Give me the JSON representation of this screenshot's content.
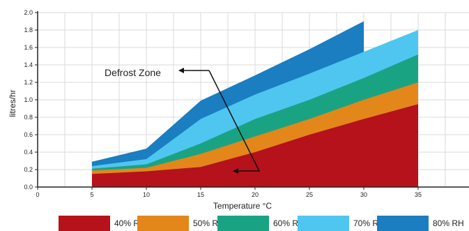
{
  "chart_data": {
    "type": "area",
    "xlabel": "Temperature °C",
    "ylabel": "litres/hr",
    "xlim": [
      0,
      40
    ],
    "ylim": [
      0,
      2.0
    ],
    "xticks": [
      "0",
      "5",
      "10",
      "15",
      "20",
      "25",
      "30",
      "35"
    ],
    "yticks": [
      "0.0",
      "0.2",
      "0.4",
      "0.6",
      "0.8",
      "1.0",
      "1.2",
      "1.4",
      "1.6",
      "1.8",
      "2.0"
    ],
    "grid": true,
    "legend_position": "bottom",
    "series": [
      {
        "name": "40% RH",
        "color": "#b5121b",
        "points": [
          [
            5,
            0.15
          ],
          [
            10,
            0.18
          ],
          [
            15,
            0.23
          ],
          [
            20,
            0.4
          ],
          [
            25,
            0.6
          ],
          [
            30,
            0.78
          ],
          [
            35,
            0.95
          ]
        ]
      },
      {
        "name": "50% RH",
        "color": "#e3871a",
        "points": [
          [
            5,
            0.19
          ],
          [
            10,
            0.22
          ],
          [
            15,
            0.38
          ],
          [
            20,
            0.58
          ],
          [
            25,
            0.78
          ],
          [
            30,
            1.0
          ],
          [
            35,
            1.2
          ]
        ]
      },
      {
        "name": "60% RH",
        "color": "#1aa383",
        "points": [
          [
            5,
            0.21
          ],
          [
            10,
            0.26
          ],
          [
            15,
            0.5
          ],
          [
            20,
            0.78
          ],
          [
            25,
            1.0
          ],
          [
            30,
            1.25
          ],
          [
            35,
            1.52
          ]
        ]
      },
      {
        "name": "70% RH",
        "color": "#4fc6f0",
        "points": [
          [
            5,
            0.24
          ],
          [
            10,
            0.32
          ],
          [
            15,
            0.78
          ],
          [
            20,
            1.06
          ],
          [
            25,
            1.3
          ],
          [
            30,
            1.55
          ],
          [
            35,
            1.8
          ]
        ]
      },
      {
        "name": "80% RH",
        "color": "#1a7ec0",
        "points": [
          [
            5,
            0.29
          ],
          [
            10,
            0.44
          ],
          [
            15,
            0.99
          ],
          [
            20,
            1.28
          ],
          [
            25,
            1.58
          ],
          [
            30,
            1.9
          ]
        ]
      }
    ],
    "annotations": [
      {
        "text": "Defrost Zone"
      }
    ]
  }
}
